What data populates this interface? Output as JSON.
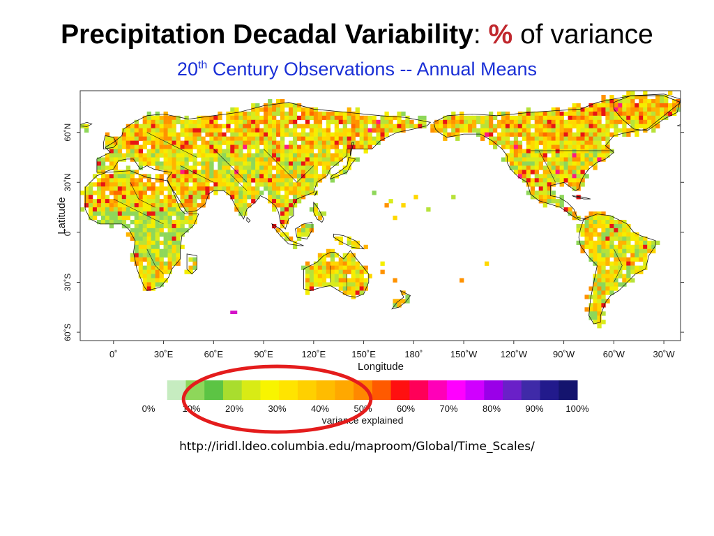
{
  "header": {
    "title_bold": "Precipitation Decadal Variability",
    "title_colon": ":",
    "title_percent": "%",
    "title_rest": "of variance",
    "subtitle_pre": "20",
    "subtitle_sup": "th",
    "subtitle_rest": "Century Observations -- Annual Means"
  },
  "map": {
    "projection": "equirectangular, Pacific-centered",
    "lon_range": [
      -20,
      340
    ],
    "lat_range": [
      -65,
      85
    ],
    "grid": false,
    "xlabel": "Longitude",
    "ylabel": "Latitude",
    "lon_ticks": [
      "0˚",
      "30˚E",
      "60˚E",
      "90˚E",
      "120˚E",
      "150˚E",
      "180˚",
      "150˚W",
      "120˚W",
      "90˚W",
      "60˚W",
      "30˚W"
    ],
    "lon_tick_values": [
      0,
      30,
      60,
      90,
      120,
      150,
      180,
      210,
      240,
      270,
      300,
      330
    ],
    "lat_ticks": [
      "60˚N",
      "30˚N",
      "0˚",
      "30˚S",
      "60˚S"
    ],
    "lat_tick_values": [
      60,
      30,
      0,
      -30,
      -60
    ],
    "land_colors": [
      "#8ed75a",
      "#b7e23a",
      "#d9ec1c",
      "#f5ee00",
      "#ffd800",
      "#ffb400",
      "#ff9200",
      "#ff6a00",
      "#e81414"
    ],
    "outlier_colors": [
      "#ff1a80",
      "#d412c8"
    ],
    "ocean_color": "#ffffff",
    "border_color": "#111111"
  },
  "colorbar": {
    "label": "variance explained",
    "tick_labels": [
      "0%",
      "10%",
      "20%",
      "30%",
      "40%",
      "50%",
      "60%",
      "70%",
      "80%",
      "90%",
      "100%"
    ],
    "tick_values": [
      0,
      10,
      20,
      30,
      40,
      50,
      60,
      70,
      80,
      90,
      100
    ],
    "range": [
      0,
      100
    ],
    "colors": [
      "#ffffff",
      "#c6ecc0",
      "#8ed75a",
      "#5cc444",
      "#a9dd2e",
      "#d8eb15",
      "#f8f400",
      "#ffe400",
      "#ffd000",
      "#ffbc00",
      "#ffa800",
      "#ff8800",
      "#ff5a00",
      "#ff1010",
      "#ff0058",
      "#ff00b8",
      "#ff00ff",
      "#d000ff",
      "#9a00e8",
      "#6a20c8",
      "#3f2aa8",
      "#221a8c",
      "#14146e"
    ],
    "highlight": {
      "range": [
        15,
        45
      ],
      "color": "#e41c1c"
    }
  },
  "footer": {
    "url": "http://iridl.ldeo.columbia.edu/maproom/Global/Time_Scales/"
  }
}
